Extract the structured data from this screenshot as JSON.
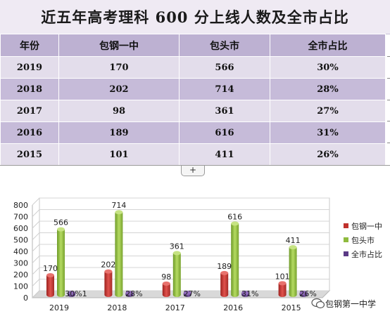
{
  "title": "近五年高考理科 600 分上线人数及全市占比",
  "table": {
    "headers": [
      "年份",
      "包钢一中",
      "包头市",
      "全市占比"
    ],
    "rows": [
      [
        "2019",
        "170",
        "566",
        "30%"
      ],
      [
        "2018",
        "202",
        "714",
        "28%"
      ],
      [
        "2017",
        "98",
        "361",
        "27%"
      ],
      [
        "2016",
        "189",
        "616",
        "31%"
      ],
      [
        "2015",
        "101",
        "411",
        "26%"
      ]
    ]
  },
  "add_button_label": "+",
  "watermark": "包钢第一中学",
  "colors": {
    "series1": "#c0312d",
    "series2": "#8fbb3e",
    "series3": "#5b3a86",
    "header_bg": "#bdb1d2",
    "row_light": "#e3ddeb",
    "row_dark": "#c6bbd9"
  },
  "chart_data": {
    "type": "bar",
    "categories": [
      "2019",
      "2018",
      "2017",
      "2016",
      "2015"
    ],
    "series": [
      {
        "name": "包钢一中",
        "values": [
          170,
          202,
          98,
          189,
          101
        ],
        "labels": [
          "170",
          "202",
          "98",
          "189",
          "101"
        ]
      },
      {
        "name": "包头市",
        "values": [
          566,
          714,
          361,
          616,
          411
        ],
        "labels": [
          "566",
          "714",
          "361",
          "616",
          "411"
        ]
      },
      {
        "name": "全市占比",
        "values": [
          0.3,
          0.28,
          0.27,
          0.31,
          0.26
        ],
        "labels": [
          "30%1",
          "28%",
          "27%",
          "31%",
          "26%"
        ]
      }
    ],
    "y_ticks": [
      "0",
      "100",
      "200",
      "300",
      "400",
      "500",
      "600",
      "700",
      "800"
    ],
    "ylim": [
      0,
      800
    ],
    "legend_position": "right",
    "grid": true,
    "style": "3d"
  }
}
